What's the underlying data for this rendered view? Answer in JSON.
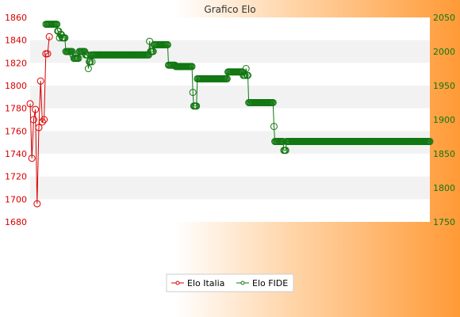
{
  "chart_data": {
    "type": "line",
    "title": "Grafico Elo",
    "y_left": {
      "range": [
        1680,
        1860
      ],
      "ticks": [
        1680,
        1700,
        1720,
        1740,
        1760,
        1780,
        1800,
        1820,
        1840,
        1860
      ]
    },
    "y_right": {
      "range": [
        1750,
        2050
      ],
      "ticks": [
        1750,
        1800,
        1850,
        1900,
        1950,
        2000,
        2050
      ]
    },
    "grid": "horizontal alternating bands",
    "legend_placement": "bottom",
    "series": [
      {
        "name": "Elo Italia",
        "axis": "left",
        "color": "#d80000",
        "values": [
          1784,
          1736,
          1770,
          1779,
          1696,
          1763,
          1804,
          1768,
          1770,
          1828,
          1828,
          1843
        ]
      },
      {
        "name": "Elo FIDE",
        "axis": "right",
        "color": "#117711",
        "values": [
          2040,
          2040,
          2040,
          2040,
          2040,
          2040,
          2040,
          2040,
          2040,
          2040,
          2040,
          2040,
          2040,
          2030,
          2030,
          2020,
          2025,
          2025,
          2020,
          2020,
          2020,
          2020,
          2000,
          2000,
          2000,
          2000,
          2000,
          2000,
          2000,
          2000,
          1995,
          1990,
          1990,
          1990,
          1990,
          1990,
          1990,
          2000,
          2000,
          2000,
          2000,
          2000,
          2000,
          2000,
          1995,
          1995,
          1995,
          1975,
          1985,
          1985,
          1995,
          1985,
          1995,
          1995,
          1995,
          1995,
          1995,
          1995,
          1995,
          1995,
          1995,
          1995,
          1995,
          1995,
          1995,
          1995,
          1995,
          1995,
          1995,
          1995,
          1995,
          1995,
          1995,
          1995,
          1995,
          1995,
          1995,
          1995,
          1995,
          1995,
          1995,
          1995,
          1995,
          1995,
          1995,
          1995,
          1995,
          1995,
          1995,
          1995,
          1995,
          1995,
          1995,
          1995,
          1995,
          1995,
          1995,
          1995,
          1995,
          1995,
          1995,
          1995,
          1995,
          1995,
          1995,
          1995,
          1995,
          1995,
          1995,
          1995,
          1995,
          1995,
          1995,
          1995,
          1995,
          2015,
          2000,
          2000,
          2000,
          2000,
          2010,
          2010,
          2010,
          2010,
          2010,
          2010,
          2010,
          2010,
          2010,
          2010,
          2010,
          2010,
          2010,
          2010,
          2010,
          2010,
          1980,
          1980,
          1980,
          1980,
          1980,
          1980,
          1980,
          1980,
          1978,
          1978,
          1978,
          1978,
          1978,
          1978,
          1978,
          1978,
          1978,
          1978,
          1978,
          1978,
          1978,
          1978,
          1978,
          1978,
          1978,
          1978,
          1978,
          1940,
          1920,
          1920,
          1920,
          1920,
          1960,
          1960,
          1960,
          1960,
          1960,
          1960,
          1960,
          1960,
          1960,
          1960,
          1960,
          1960,
          1960,
          1960,
          1960,
          1960,
          1960,
          1960,
          1960,
          1960,
          1960,
          1960,
          1960,
          1960,
          1960,
          1960,
          1960,
          1960,
          1960,
          1960,
          1960,
          1960,
          1960,
          1960,
          1970,
          1970,
          1970,
          1970,
          1970,
          1970,
          1970,
          1970,
          1970,
          1970,
          1970,
          1970,
          1970,
          1970,
          1970,
          1970,
          1970,
          1965,
          1965,
          1965,
          1975,
          1965,
          1965,
          1925,
          1925,
          1925,
          1925,
          1925,
          1925,
          1925,
          1925,
          1925,
          1925,
          1925,
          1925,
          1925,
          1925,
          1925,
          1925,
          1925,
          1925,
          1925,
          1925,
          1925,
          1925,
          1925,
          1925,
          1925,
          1925,
          1925,
          1925,
          1890,
          1868,
          1868,
          1868,
          1868,
          1868,
          1868,
          1868,
          1868,
          1868,
          1868,
          1855,
          1855,
          1855,
          1868,
          1868,
          1868,
          1868,
          1868,
          1868,
          1868,
          1868,
          1868,
          1868,
          1868,
          1868,
          1868,
          1868,
          1868,
          1868,
          1868,
          1868,
          1868,
          1868,
          1868,
          1868,
          1868,
          1868,
          1868,
          1868,
          1868,
          1868,
          1868,
          1868,
          1868,
          1868,
          1868,
          1868,
          1868,
          1868,
          1868,
          1868,
          1868,
          1868,
          1868,
          1868,
          1868,
          1868,
          1868,
          1868,
          1868,
          1868,
          1868,
          1868,
          1868,
          1868,
          1868,
          1868,
          1868,
          1868,
          1868,
          1868,
          1868,
          1868,
          1868,
          1868,
          1868,
          1868,
          1868,
          1868,
          1868,
          1868,
          1868,
          1868,
          1868,
          1868,
          1868,
          1868,
          1868,
          1868,
          1868,
          1868,
          1868,
          1868,
          1868,
          1868,
          1868,
          1868,
          1868,
          1868,
          1868,
          1868,
          1868,
          1868,
          1868,
          1868,
          1868,
          1868,
          1868,
          1868,
          1868,
          1868,
          1868,
          1868,
          1868,
          1868,
          1868,
          1868,
          1868,
          1868,
          1868,
          1868,
          1868,
          1868,
          1868,
          1868,
          1868,
          1868,
          1868,
          1868,
          1868,
          1868,
          1868,
          1868,
          1868,
          1868,
          1868,
          1868,
          1868,
          1868,
          1868,
          1868,
          1868,
          1868,
          1868,
          1868,
          1868,
          1868,
          1868,
          1868,
          1868,
          1868,
          1868,
          1868,
          1868,
          1868,
          1868,
          1868,
          1868,
          1868,
          1868,
          1868,
          1868,
          1868,
          1868,
          1868,
          1868,
          1868,
          1868,
          1868,
          1868,
          1868,
          1868,
          1868
        ]
      }
    ]
  }
}
